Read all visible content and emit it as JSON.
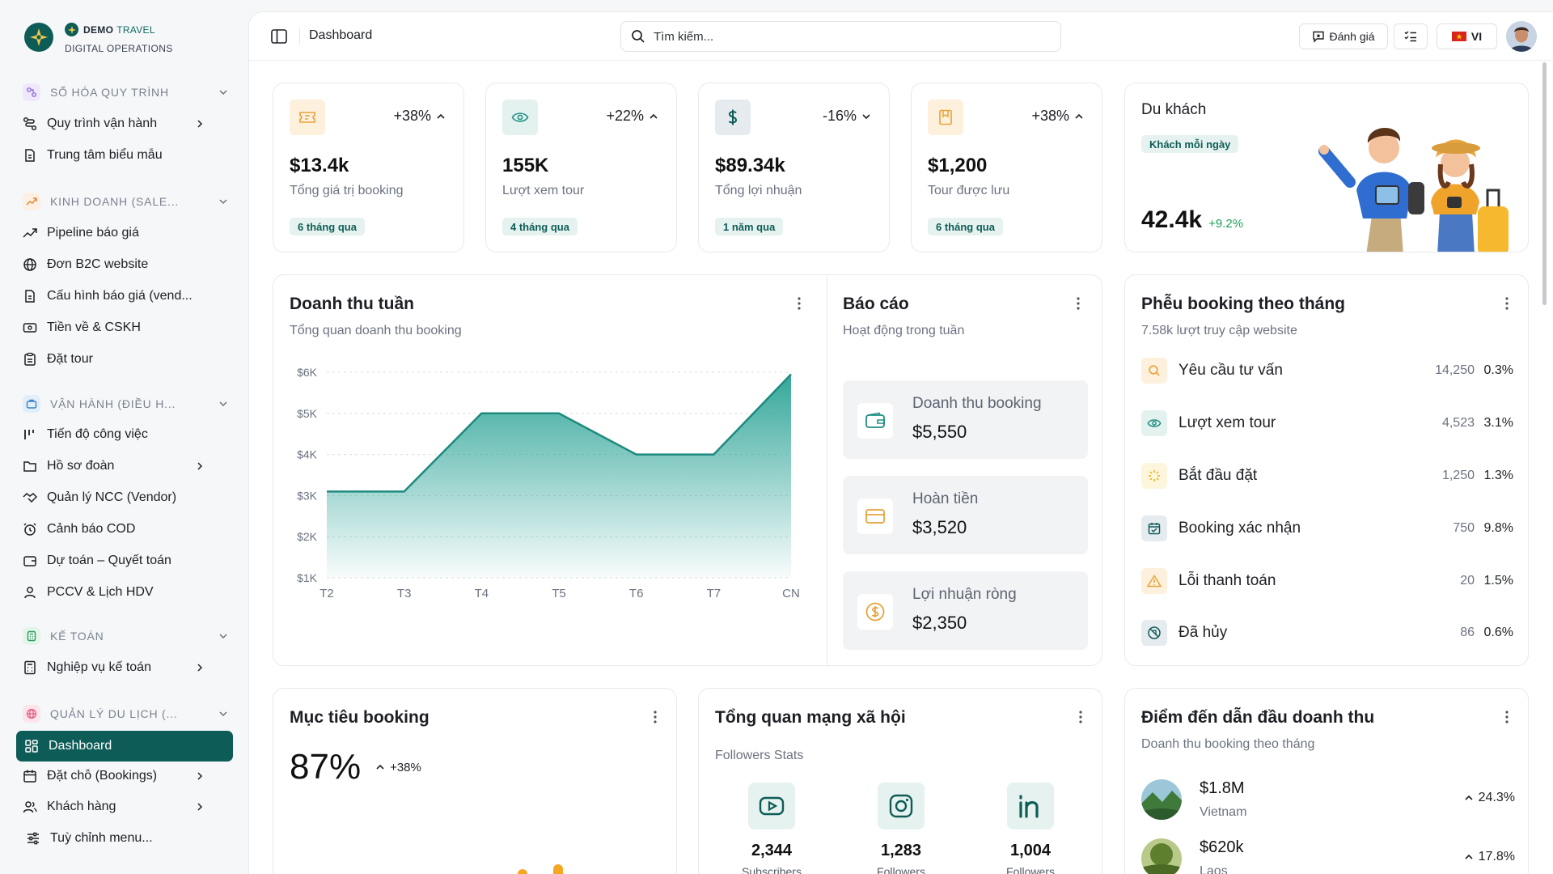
{
  "brand": {
    "name_bold": "DEMO",
    "name_light": "TRAVEL",
    "subtitle": "DIGITAL OPERATIONS"
  },
  "sidebar": {
    "groups": [
      {
        "label": "SỐ HÓA QUY TRÌNH",
        "items": [
          {
            "label": "Quy trình vận hành",
            "chevron": true
          },
          {
            "label": "Trung tâm biểu mẫu",
            "chevron": false
          }
        ]
      },
      {
        "label": "KINH DOANH (SALE...",
        "items": [
          {
            "label": "Pipeline báo giá"
          },
          {
            "label": "Đơn B2C website"
          },
          {
            "label": "Cấu hình báo giá (vend..."
          },
          {
            "label": "Tiền về & CSKH"
          },
          {
            "label": "Đặt tour"
          }
        ]
      },
      {
        "label": "VẬN HÀNH (ĐIỀU H...",
        "items": [
          {
            "label": "Tiến độ công việc"
          },
          {
            "label": "Hồ sơ đoàn"
          },
          {
            "label": "Quản lý NCC (Vendor)"
          },
          {
            "label": "Cảnh báo COD"
          },
          {
            "label": "Dự toán – Quyết toán"
          },
          {
            "label": "PCCV & Lịch HDV"
          }
        ]
      },
      {
        "label": "KẾ TOÁN",
        "items": [
          {
            "label": "Nghiệp vụ kế toán"
          }
        ]
      },
      {
        "label": "QUẢN LÝ DU LỊCH (...",
        "items": [
          {
            "label": "Dashboard"
          },
          {
            "label": "Đặt chỗ (Bookings)"
          },
          {
            "label": "Khách hàng"
          }
        ]
      }
    ],
    "customize": "Tuỳ chỉnh menu..."
  },
  "topbar": {
    "crumb": "Dashboard",
    "search_placeholder": "Tìm kiếm...",
    "feedback": "Đánh giá",
    "lang": "VI"
  },
  "kpis": [
    {
      "change": "+38%",
      "dir": "up",
      "value": "$13.4k",
      "label": "Tổng giá trị booking",
      "badge": "6 tháng qua"
    },
    {
      "change": "+22%",
      "dir": "up",
      "value": "155K",
      "label": "Lượt xem tour",
      "badge": "4 tháng qua"
    },
    {
      "change": "-16%",
      "dir": "down",
      "value": "$89.34k",
      "label": "Tổng lợi nhuận",
      "badge": "1 năm qua"
    },
    {
      "change": "+38%",
      "dir": "up",
      "value": "$1,200",
      "label": "Tour được lưu",
      "badge": "6 tháng qua"
    }
  ],
  "travelers": {
    "title": "Du khách",
    "badge": "Khách mỗi ngày",
    "value": "42.4k",
    "change": "+9.2%"
  },
  "revenue": {
    "title": "Doanh thu tuần",
    "subtitle": "Tổng quan doanh thu booking"
  },
  "chart_data": {
    "type": "area",
    "categories": [
      "T2",
      "T3",
      "T4",
      "T5",
      "T6",
      "T7",
      "CN"
    ],
    "values": [
      3100,
      3100,
      5000,
      5000,
      4000,
      4000,
      5950
    ],
    "ylim": [
      1000,
      6000
    ],
    "yticks": [
      "$6K",
      "$5K",
      "$4K",
      "$3K",
      "$2K",
      "$1K"
    ],
    "title": "",
    "xlabel": "",
    "ylabel": "",
    "grid": true,
    "color": "#2aa396"
  },
  "report": {
    "title": "Báo cáo",
    "subtitle": "Hoạt động trong tuần",
    "items": [
      {
        "label": "Doanh thu booking",
        "value": "$5,550"
      },
      {
        "label": "Hoàn tiền",
        "value": "$3,520"
      },
      {
        "label": "Lợi nhuận ròng",
        "value": "$2,350"
      }
    ]
  },
  "funnel": {
    "title": "Phễu booking theo tháng",
    "subtitle": "7.58k lượt truy cập website",
    "rows": [
      {
        "label": "Yêu cầu tư vấn",
        "count": "14,250",
        "pct": "0.3%"
      },
      {
        "label": "Lượt xem tour",
        "count": "4,523",
        "pct": "3.1%"
      },
      {
        "label": "Bắt đầu đặt",
        "count": "1,250",
        "pct": "1.3%"
      },
      {
        "label": "Booking xác nhận",
        "count": "750",
        "pct": "9.8%"
      },
      {
        "label": "Lỗi thanh toán",
        "count": "20",
        "pct": "1.5%"
      },
      {
        "label": "Đã hủy",
        "count": "86",
        "pct": "0.6%"
      }
    ]
  },
  "goal": {
    "title": "Mục tiêu booking",
    "value": "87%",
    "change": "+38%"
  },
  "social": {
    "title": "Tổng quan mạng xã hội",
    "subtitle": "Followers Stats",
    "items": [
      {
        "count": "2,344",
        "label": "Subscribers",
        "icon": "youtube-icon"
      },
      {
        "count": "1,283",
        "label": "Followers",
        "icon": "instagram-icon"
      },
      {
        "count": "1,004",
        "label": "Followers",
        "icon": "linkedin-icon"
      }
    ]
  },
  "destinations": {
    "title": "Điểm đến dẫn đầu doanh thu",
    "subtitle": "Doanh thu booking theo tháng",
    "rows": [
      {
        "value": "$1.8M",
        "name": "Vietnam",
        "pct": "24.3%"
      },
      {
        "value": "$620k",
        "name": "Laos",
        "pct": "17.8%"
      }
    ]
  }
}
